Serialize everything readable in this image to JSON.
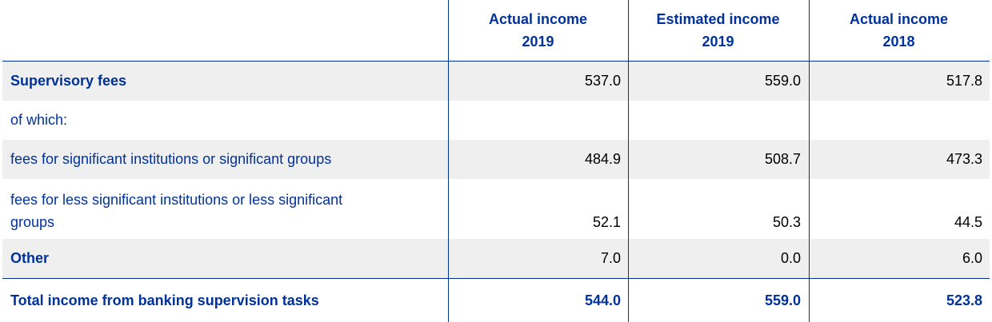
{
  "columns": [
    {
      "line1": "Actual income",
      "line2": "2019"
    },
    {
      "line1": "Estimated income",
      "line2": "2019"
    },
    {
      "line1": "Actual income",
      "line2": "2018"
    }
  ],
  "rows": [
    {
      "label": "Supervisory fees",
      "values": [
        "537.0",
        "559.0",
        "517.8"
      ]
    },
    {
      "label": "of which:",
      "values": [
        "",
        "",
        ""
      ]
    },
    {
      "label": "fees for significant institutions or significant groups",
      "values": [
        "484.9",
        "508.7",
        "473.3"
      ]
    },
    {
      "label_line1": "fees for less significant institutions or less significant",
      "label_line2": "groups",
      "values": [
        "52.1",
        "50.3",
        "44.5"
      ]
    },
    {
      "label": "Other",
      "values": [
        "7.0",
        "0.0",
        "6.0"
      ]
    },
    {
      "label": "Total income from banking supervision tasks",
      "values": [
        "544.0",
        "559.0",
        "523.8"
      ]
    }
  ],
  "colors": {
    "accent": "#003299",
    "row_shade": "#efefef"
  }
}
